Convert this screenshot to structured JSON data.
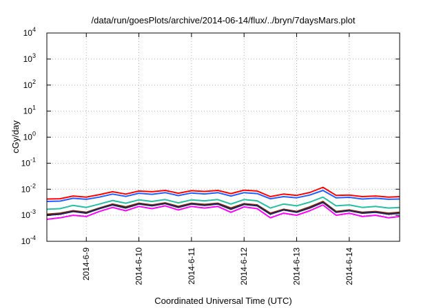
{
  "chart_data": {
    "type": "line",
    "title": "/data/run/goesPlots/archive/2014-06-14/flux/../bryn/7daysMars.plot",
    "xlabel": "Coordinated Universal Time (UTC)",
    "ylabel": "cGy/day",
    "yscale": "log",
    "ylim": [
      0.0001,
      10000
    ],
    "xlim": [
      "2014-06-08 06:00",
      "2014-06-14 23:00"
    ],
    "grid": true,
    "x_ticks": [
      "2014-6-9",
      "2014-6-10",
      "2014-6-11",
      "2014-6-12",
      "2014-6-13",
      "2014-6-14"
    ],
    "y_ticks": [
      {
        "base": "10",
        "exp": "-4",
        "value": 0.0001
      },
      {
        "base": "10",
        "exp": "-3",
        "value": 0.001
      },
      {
        "base": "10",
        "exp": "-2",
        "value": 0.01
      },
      {
        "base": "10",
        "exp": "-1",
        "value": 0.1
      },
      {
        "base": "10",
        "exp": "0",
        "value": 1
      },
      {
        "base": "10",
        "exp": "1",
        "value": 10
      },
      {
        "base": "10",
        "exp": "2",
        "value": 100
      },
      {
        "base": "10",
        "exp": "3",
        "value": 1000
      },
      {
        "base": "10",
        "exp": "4",
        "value": 10000
      }
    ],
    "x": [
      "2014-06-08 06:00",
      "2014-06-08 12:00",
      "2014-06-08 18:00",
      "2014-06-09 00:00",
      "2014-06-09 06:00",
      "2014-06-09 12:00",
      "2014-06-09 18:00",
      "2014-06-10 00:00",
      "2014-06-10 06:00",
      "2014-06-10 12:00",
      "2014-06-10 18:00",
      "2014-06-11 00:00",
      "2014-06-11 06:00",
      "2014-06-11 12:00",
      "2014-06-11 18:00",
      "2014-06-12 00:00",
      "2014-06-12 06:00",
      "2014-06-12 12:00",
      "2014-06-12 18:00",
      "2014-06-13 00:00",
      "2014-06-13 06:00",
      "2014-06-13 12:00",
      "2014-06-13 18:00",
      "2014-06-14 00:00",
      "2014-06-14 06:00",
      "2014-06-14 12:00",
      "2014-06-14 18:00",
      "2014-06-14 23:00"
    ],
    "series": [
      {
        "color": "#ff0000",
        "values": [
          0.0042,
          0.0043,
          0.0055,
          0.005,
          0.0062,
          0.008,
          0.0065,
          0.0085,
          0.008,
          0.009,
          0.007,
          0.0088,
          0.0082,
          0.009,
          0.0068,
          0.0092,
          0.0085,
          0.0052,
          0.0065,
          0.0058,
          0.0075,
          0.0118,
          0.0058,
          0.006,
          0.0052,
          0.0055,
          0.005,
          0.0052
        ]
      },
      {
        "color": "#1f5fff",
        "values": [
          0.0034,
          0.0035,
          0.0045,
          0.0041,
          0.005,
          0.0065,
          0.0053,
          0.007,
          0.0064,
          0.0074,
          0.0057,
          0.0072,
          0.0066,
          0.0074,
          0.0055,
          0.0074,
          0.0068,
          0.0043,
          0.0052,
          0.0047,
          0.006,
          0.009,
          0.0047,
          0.0049,
          0.0042,
          0.0045,
          0.0041,
          0.0042
        ]
      },
      {
        "color": "#20c0a0",
        "values": [
          0.0017,
          0.0018,
          0.0024,
          0.002,
          0.0027,
          0.0037,
          0.0029,
          0.0039,
          0.0034,
          0.004,
          0.003,
          0.0039,
          0.0036,
          0.004,
          0.0027,
          0.004,
          0.0036,
          0.0019,
          0.0027,
          0.0023,
          0.0032,
          0.005,
          0.0023,
          0.0025,
          0.002,
          0.0022,
          0.0019,
          0.002
        ]
      },
      {
        "color": "#7a2a00",
        "values": [
          0.0011,
          0.0012,
          0.0015,
          0.0013,
          0.0019,
          0.0027,
          0.0021,
          0.0029,
          0.0025,
          0.003,
          0.0022,
          0.0029,
          0.0026,
          0.0029,
          0.0019,
          0.0028,
          0.0025,
          0.0012,
          0.0017,
          0.0014,
          0.0021,
          0.0034,
          0.0014,
          0.0016,
          0.0013,
          0.0014,
          0.0012,
          0.0013
        ]
      },
      {
        "color": "#202060",
        "values": [
          0.001,
          0.0011,
          0.0014,
          0.0012,
          0.0018,
          0.0025,
          0.0019,
          0.0027,
          0.0023,
          0.0028,
          0.002,
          0.0027,
          0.0024,
          0.0027,
          0.0017,
          0.0026,
          0.0023,
          0.0011,
          0.0016,
          0.0013,
          0.0019,
          0.0031,
          0.0013,
          0.0015,
          0.0012,
          0.0013,
          0.0011,
          0.0012
        ]
      },
      {
        "color": "#ff00ff",
        "values": [
          0.0007,
          0.0008,
          0.001,
          0.0009,
          0.0014,
          0.002,
          0.0015,
          0.0022,
          0.0018,
          0.0023,
          0.0016,
          0.0022,
          0.0019,
          0.0022,
          0.0013,
          0.0021,
          0.0018,
          0.0008,
          0.0012,
          0.001,
          0.0015,
          0.0025,
          0.001,
          0.0012,
          0.0009,
          0.001,
          0.0008,
          0.0009
        ]
      }
    ]
  }
}
